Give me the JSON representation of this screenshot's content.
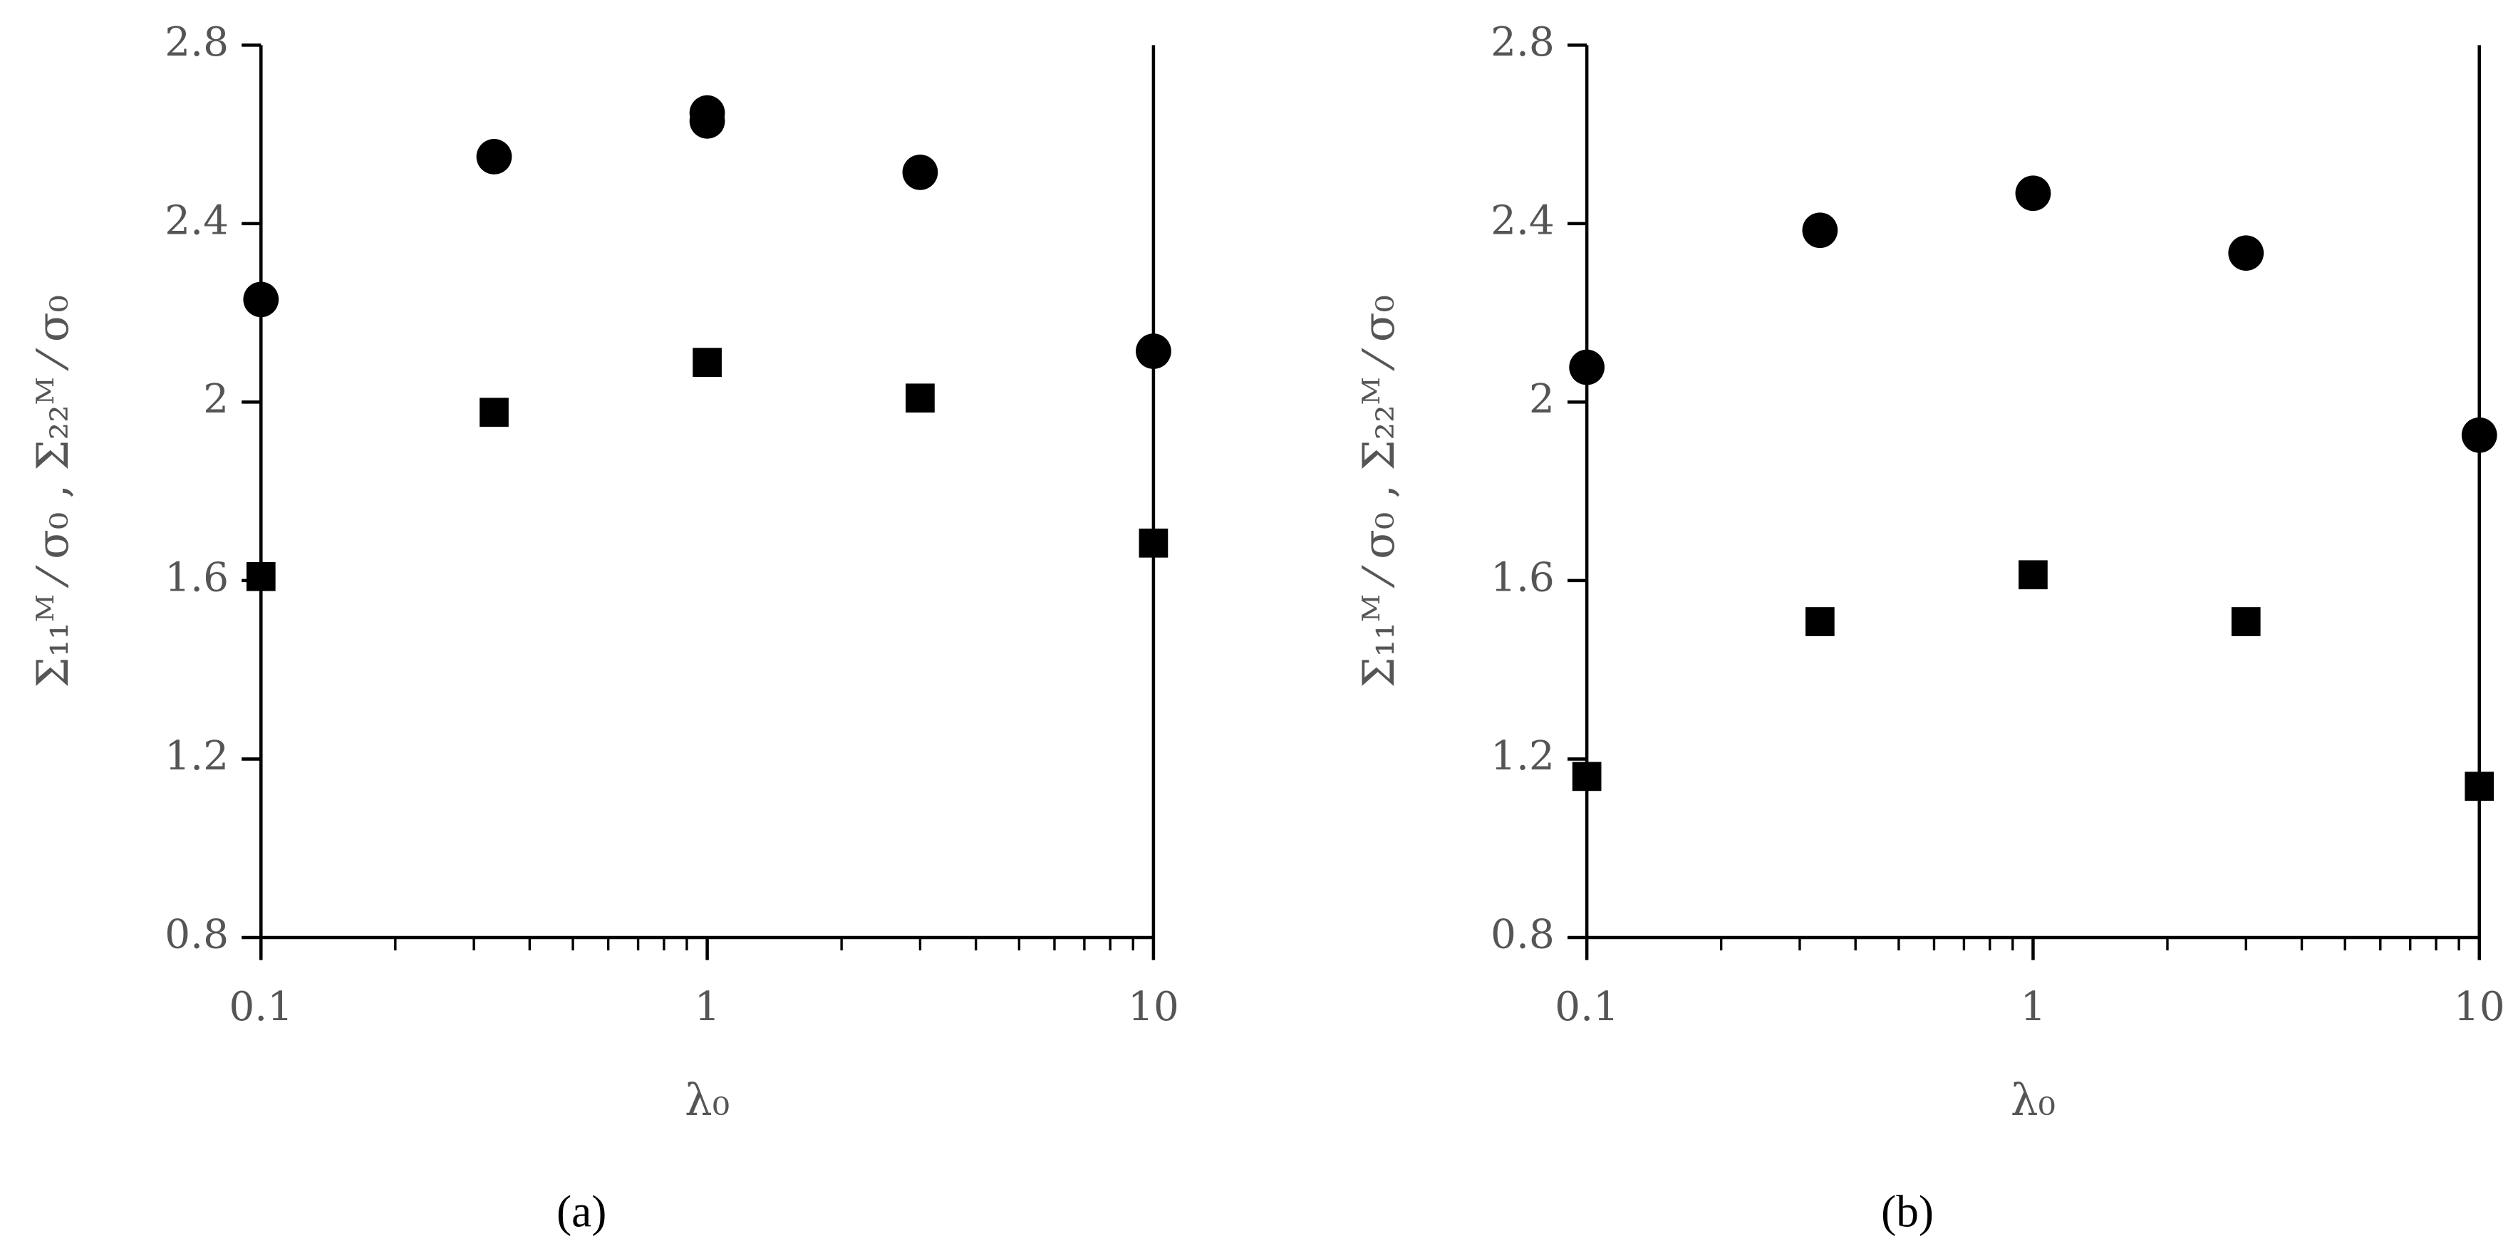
{
  "chart_data": [
    {
      "type": "scatter",
      "caption": "(a)",
      "xlabel": "λ₀",
      "ylabel": "Σ₁₁ᴹ ⁄ σ₀ , Σ₂₂ᴹ ⁄ σ₀",
      "log_x": true,
      "xlim": [
        0.1,
        10
      ],
      "xticks": [
        0.1,
        1,
        10
      ],
      "ylim": [
        0.8,
        2.8
      ],
      "yticks": [
        0.8,
        1.2,
        1.6,
        2,
        2.4,
        2.8
      ],
      "series": [
        {
          "marker": "circle",
          "color": "#000000",
          "x": [
            0.1,
            0.333,
            1,
            1,
            3,
            10
          ],
          "values": [
            2.23,
            2.55,
            2.648,
            2.63,
            2.515,
            2.114
          ]
        },
        {
          "marker": "square",
          "color": "#000000",
          "x": [
            0.1,
            0.333,
            1,
            3,
            10
          ],
          "values": [
            1.609,
            1.977,
            2.089,
            2.009,
            1.684
          ]
        }
      ]
    },
    {
      "type": "scatter",
      "caption": "(b)",
      "xlabel": "λ₀",
      "ylabel": "Σ₁₁ᴹ ⁄ σ₀ , Σ₂₂ᴹ ⁄ σ₀",
      "log_x": true,
      "xlim": [
        0.1,
        10
      ],
      "xticks": [
        0.1,
        1,
        10
      ],
      "ylim": [
        0.8,
        2.8
      ],
      "yticks": [
        0.8,
        1.2,
        1.6,
        2,
        2.4,
        2.8
      ],
      "series": [
        {
          "marker": "circle",
          "color": "#000000",
          "x": [
            0.1,
            0.333,
            1,
            3,
            10
          ],
          "values": [
            2.078,
            2.385,
            2.468,
            2.334,
            1.926
          ]
        },
        {
          "marker": "square",
          "color": "#000000",
          "x": [
            0.1,
            0.333,
            1,
            3,
            10
          ],
          "values": [
            1.161,
            1.508,
            1.613,
            1.508,
            1.139
          ]
        }
      ]
    }
  ]
}
